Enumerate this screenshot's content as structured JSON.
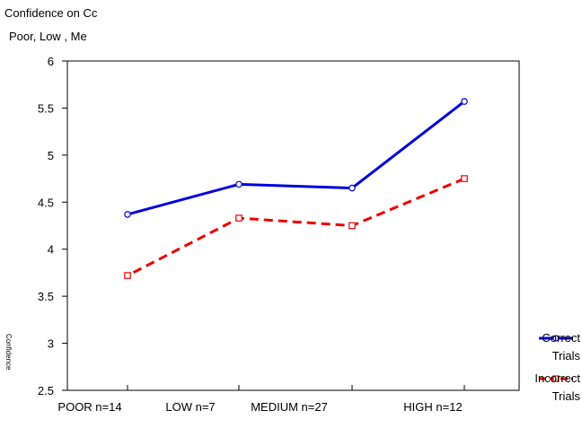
{
  "chart_data": {
    "type": "line",
    "title": "Confidence on Cc",
    "subtitle": "Poor, Low , Me",
    "xlabel": "",
    "ylabel": "",
    "categories": [
      "HIGH n=12",
      "MEDIUM n=27",
      "LOW n=7",
      "POOR n=14"
    ],
    "mirrored": true,
    "ylim": [
      2.5,
      6
    ],
    "yticks": [
      "2.5",
      "3",
      "3.5",
      "4",
      "4.5",
      "5",
      "5.5",
      "6"
    ],
    "grid": false,
    "legend_position": "right",
    "series": [
      {
        "name": "Correct Trials",
        "values": [
          5.57,
          4.65,
          4.69,
          4.37
        ],
        "color": "#0000dd",
        "dash": "solid",
        "marker": "circle"
      },
      {
        "name": "Incorrect Trials",
        "values": [
          4.75,
          4.25,
          4.33,
          3.72
        ],
        "color": "#ee0000",
        "dash": "dashed",
        "marker": "square"
      }
    ],
    "legend": [
      {
        "line1": "Correct",
        "line2": "Trials"
      },
      {
        "line1": "Incorrect",
        "line2": "Trials"
      }
    ],
    "side_label": "Confidence"
  }
}
